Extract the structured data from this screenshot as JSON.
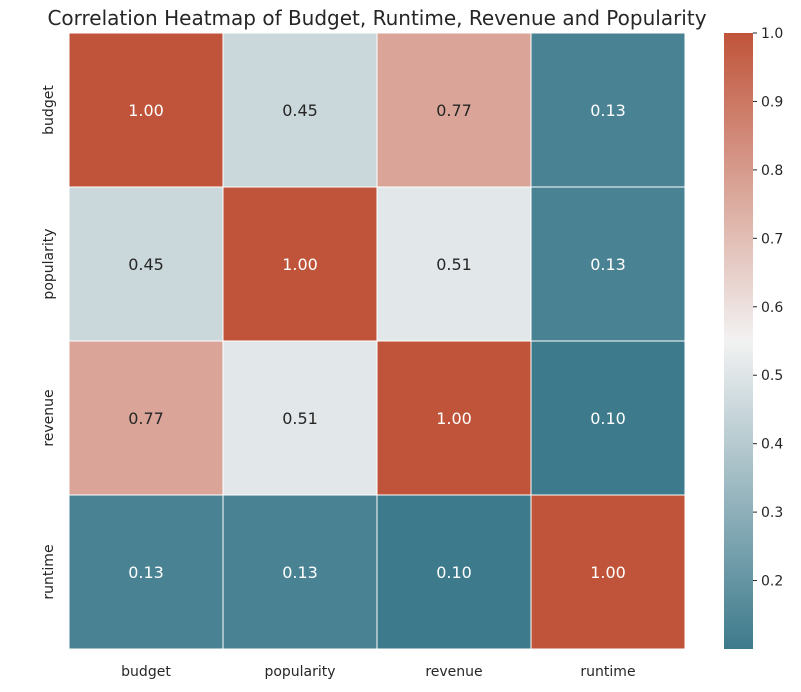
{
  "chart_data": {
    "type": "heatmap",
    "title": "Correlation Heatmap of Budget, Runtime, Revenue and Popularity",
    "xlabel": "",
    "ylabel": "",
    "x_categories": [
      "budget",
      "popularity",
      "revenue",
      "runtime"
    ],
    "y_categories": [
      "budget",
      "popularity",
      "revenue",
      "runtime"
    ],
    "values": [
      [
        1.0,
        0.45,
        0.77,
        0.13
      ],
      [
        0.45,
        1.0,
        0.51,
        0.13
      ],
      [
        0.77,
        0.51,
        1.0,
        0.1
      ],
      [
        0.13,
        0.13,
        0.1,
        1.0
      ]
    ],
    "cell_labels": [
      [
        "1.00",
        "0.45",
        "0.77",
        "0.13"
      ],
      [
        "0.45",
        "1.00",
        "0.51",
        "0.13"
      ],
      [
        "0.77",
        "0.51",
        "1.00",
        "0.10"
      ],
      [
        "0.13",
        "0.13",
        "0.10",
        "1.00"
      ]
    ],
    "colorbar": {
      "min": 0.1,
      "max": 1.0,
      "ticks": [
        "0.2",
        "0.3",
        "0.4",
        "0.5",
        "0.6",
        "0.7",
        "0.8",
        "0.9",
        "1.0"
      ]
    },
    "colormap": {
      "low": "#3d7a8c",
      "mid": "#f2f2f2",
      "high": "#c0543a"
    },
    "grid": false
  }
}
